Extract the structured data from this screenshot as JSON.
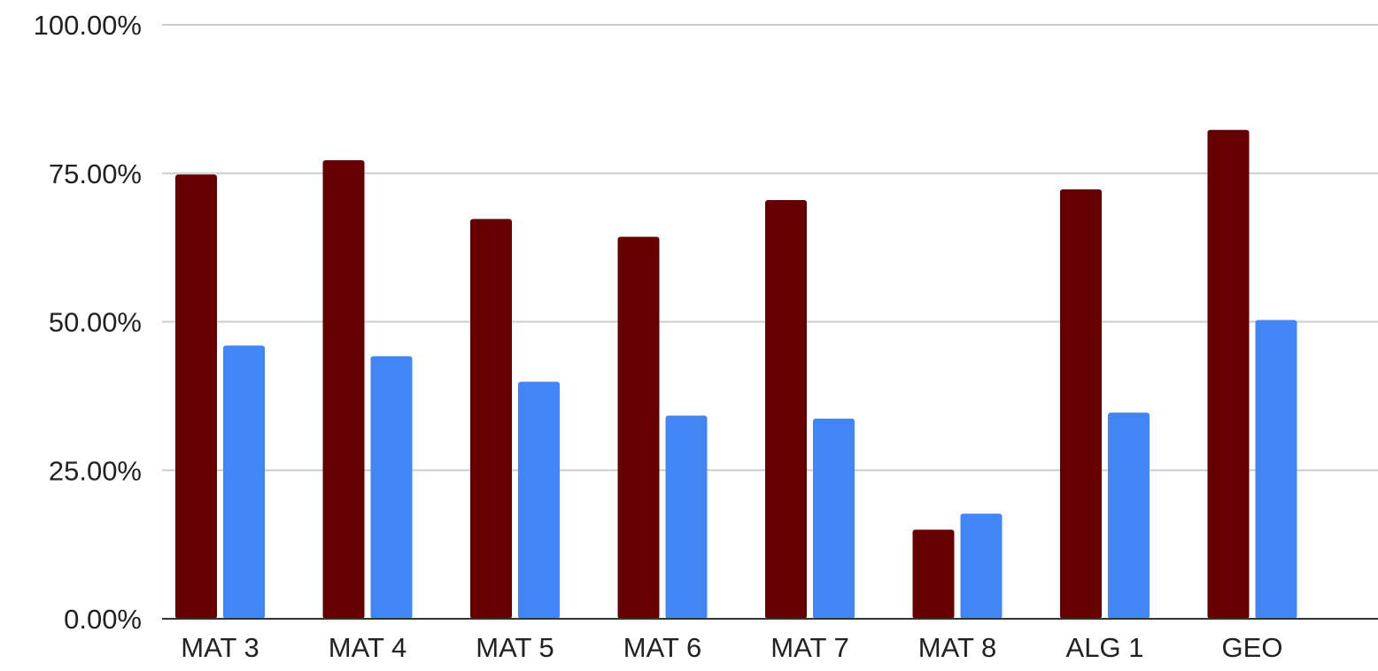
{
  "chart_data": {
    "type": "bar",
    "categories": [
      "MAT 3",
      "MAT 4",
      "MAT 5",
      "MAT 6",
      "MAT 7",
      "MAT 8",
      "ALG 1",
      "GEO"
    ],
    "series": [
      {
        "color": "#660000",
        "values": [
          74.8,
          77.2,
          67.3,
          64.3,
          70.5,
          15.0,
          72.3,
          82.3
        ]
      },
      {
        "color": "#4285f4",
        "values": [
          46.0,
          44.2,
          39.9,
          34.2,
          33.7,
          17.7,
          34.7,
          50.3
        ]
      }
    ],
    "ylim": [
      0,
      100
    ],
    "yticks": [
      0,
      25,
      50,
      75,
      100
    ],
    "ytick_labels": [
      "0.00%",
      "25.00%",
      "50.00%",
      "75.00%",
      "100.00%"
    ],
    "title": "",
    "xlabel": "",
    "ylabel": "",
    "grid": true,
    "legend": "none"
  },
  "colors": {
    "gridline": "#cccccc",
    "baseline": "#333333",
    "text": "#222222"
  }
}
